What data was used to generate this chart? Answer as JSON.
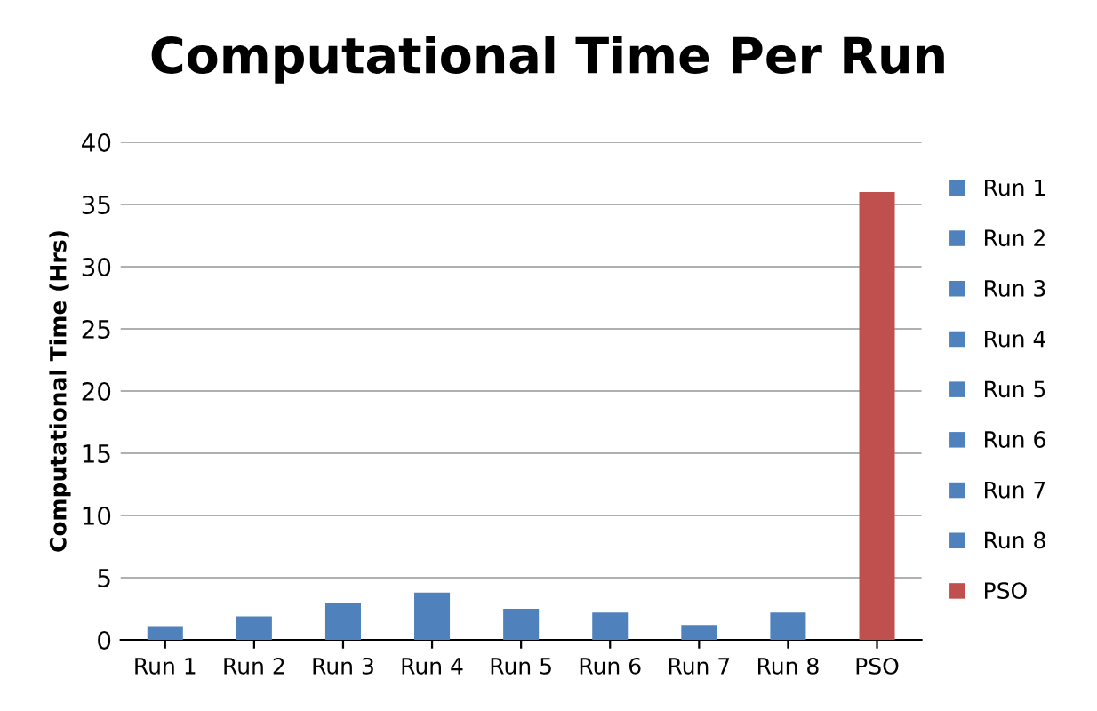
{
  "chart_data": {
    "type": "bar",
    "title": "Computational Time Per Run",
    "ylabel": "Computational Time (Hrs)",
    "categories": [
      "Run 1",
      "Run 2",
      "Run 3",
      "Run 4",
      "Run 5",
      "Run 6",
      "Run 7",
      "Run 8",
      "PSO"
    ],
    "series": [
      {
        "name": "Run 1",
        "color": "#4f81bd",
        "values": [
          1.1,
          null,
          null,
          null,
          null,
          null,
          null,
          null,
          null
        ]
      },
      {
        "name": "Run 2",
        "color": "#4f81bd",
        "values": [
          null,
          1.9,
          null,
          null,
          null,
          null,
          null,
          null,
          null
        ]
      },
      {
        "name": "Run 3",
        "color": "#4f81bd",
        "values": [
          null,
          null,
          3.0,
          null,
          null,
          null,
          null,
          null,
          null
        ]
      },
      {
        "name": "Run 4",
        "color": "#4f81bd",
        "values": [
          null,
          null,
          null,
          3.8,
          null,
          null,
          null,
          null,
          null
        ]
      },
      {
        "name": "Run 5",
        "color": "#4f81bd",
        "values": [
          null,
          null,
          null,
          null,
          2.5,
          null,
          null,
          null,
          null
        ]
      },
      {
        "name": "Run 6",
        "color": "#4f81bd",
        "values": [
          null,
          null,
          null,
          null,
          null,
          2.2,
          null,
          null,
          null
        ]
      },
      {
        "name": "Run 7",
        "color": "#4f81bd",
        "values": [
          null,
          null,
          null,
          null,
          null,
          null,
          1.2,
          null,
          null
        ]
      },
      {
        "name": "Run 8",
        "color": "#4f81bd",
        "values": [
          null,
          null,
          null,
          null,
          null,
          null,
          null,
          2.2,
          null
        ]
      },
      {
        "name": "PSO",
        "color": "#c0504d",
        "values": [
          null,
          null,
          null,
          null,
          null,
          null,
          null,
          null,
          36
        ]
      }
    ],
    "ylim": [
      0,
      40
    ],
    "yticks": [
      0,
      5,
      10,
      15,
      20,
      25,
      30,
      35,
      40
    ],
    "grid": "y",
    "legend": "right"
  }
}
